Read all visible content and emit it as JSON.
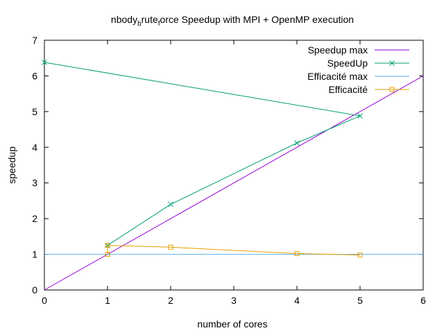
{
  "chart_data": {
    "type": "line",
    "title": {
      "main": "nbody",
      "sub1": "b",
      "mid": "rute",
      "sub2": "f",
      "rest": "orce Speedup with MPI + OpenMP execution"
    },
    "xlabel": "number of cores",
    "ylabel": "speedup",
    "xlim": [
      0,
      6
    ],
    "ylim": [
      0,
      7
    ],
    "xticks": [
      0,
      1,
      2,
      3,
      4,
      5,
      6
    ],
    "yticks": [
      0,
      1,
      2,
      3,
      4,
      5,
      6,
      7
    ],
    "grid": false,
    "legend_position": "top-right",
    "series": [
      {
        "name": "Speedup max",
        "color": "#9400d3",
        "marker": "none",
        "x": [
          0,
          6
        ],
        "y": [
          0,
          6
        ]
      },
      {
        "name": "SpeedUp",
        "color": "#009e73",
        "marker": "x",
        "x": [
          0,
          5,
          4,
          2,
          1
        ],
        "y": [
          6.38,
          4.88,
          4.12,
          2.4,
          1.25
        ]
      },
      {
        "name": "Efficacité max",
        "color": "#56b4e9",
        "marker": "none",
        "x": [
          0,
          6
        ],
        "y": [
          1,
          1
        ]
      },
      {
        "name": "Efficacité",
        "color": "#e69f00",
        "marker": "square",
        "x": [
          1,
          1,
          2,
          4,
          5
        ],
        "y": [
          1,
          1.25,
          1.2,
          1.02,
          0.98
        ]
      }
    ]
  }
}
